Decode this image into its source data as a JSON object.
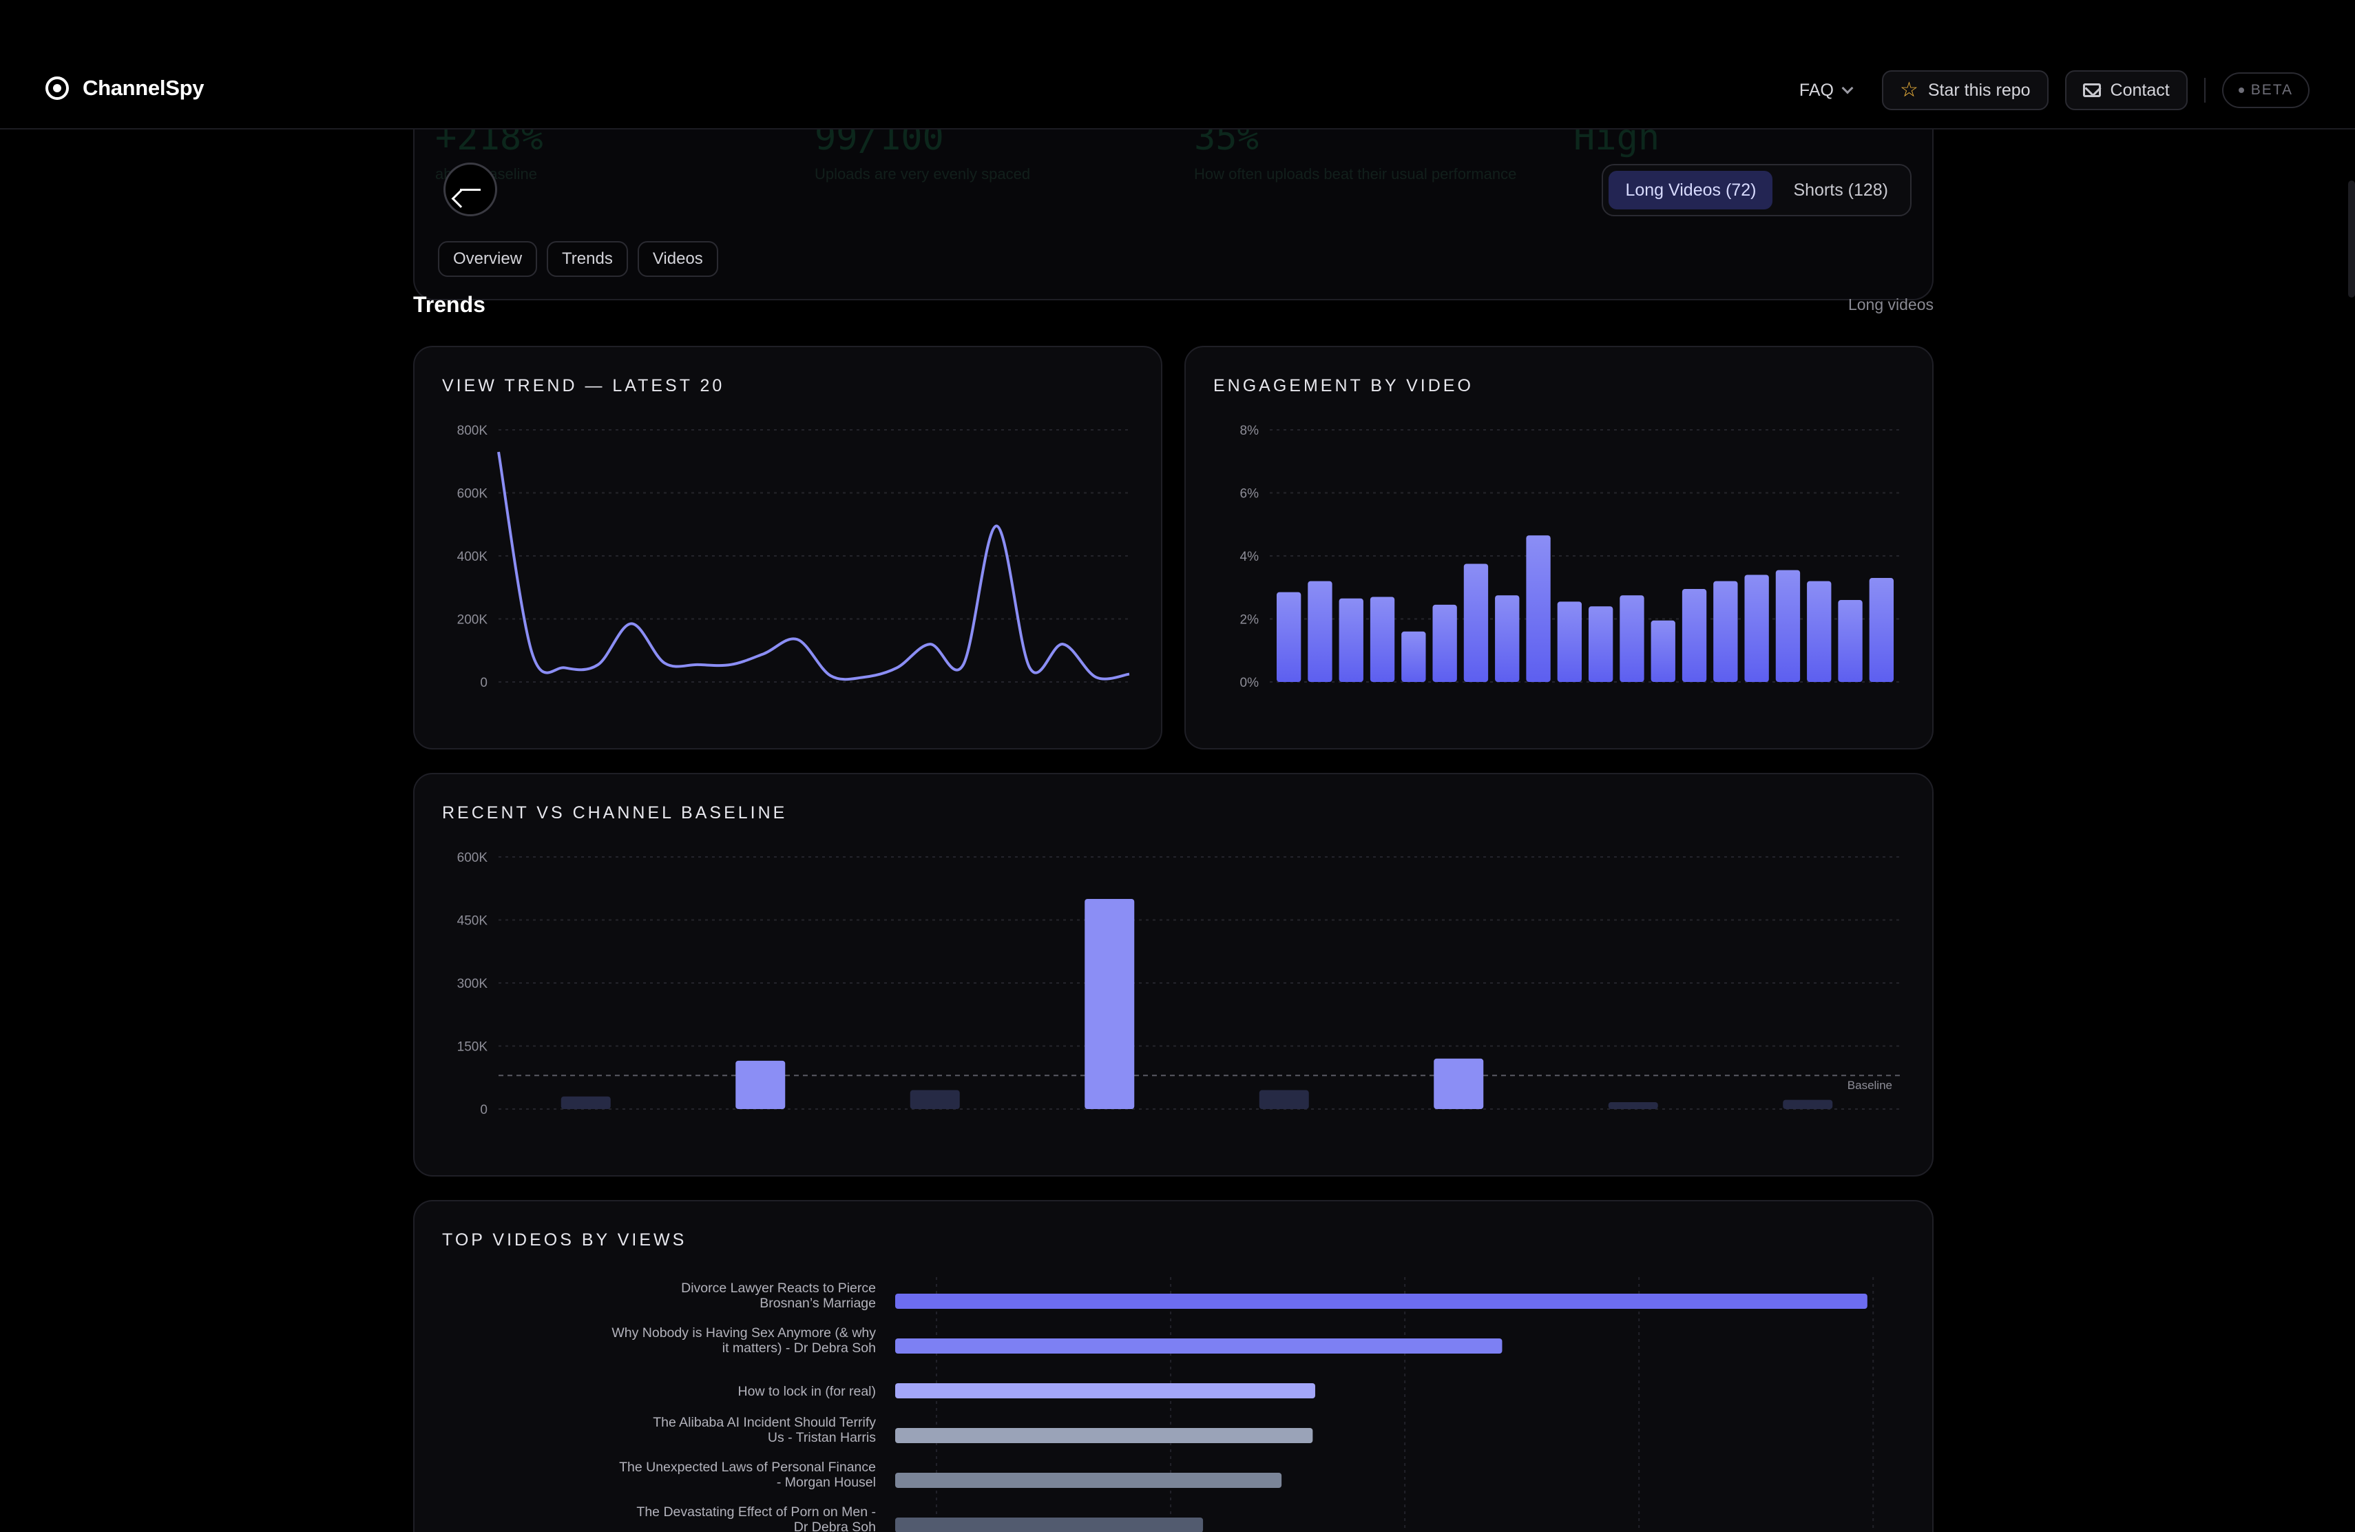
{
  "nav": {
    "brand": "ChannelSpy",
    "faq": "FAQ",
    "star": "Star this repo",
    "contact": "Contact",
    "beta": "BETA"
  },
  "hero": {
    "ghost_stats": [
      {
        "value": "+218%",
        "label": "above baseline"
      },
      {
        "value": "99/100",
        "label": "Uploads are very evenly spaced"
      },
      {
        "value": "35%",
        "label": "How often uploads beat their usual performance"
      },
      {
        "value": "High",
        "label": ""
      }
    ],
    "modes": [
      "Long Videos (72)",
      "Shorts (128)"
    ],
    "active_mode": "Long Videos (72)",
    "tabs": [
      "Overview",
      "Trends",
      "Videos"
    ]
  },
  "section": {
    "title": "Trends",
    "subtitle": "Long videos"
  },
  "colors": {
    "accent": "#6d6df0",
    "accent_light": "#8b8ef5",
    "muted_bar": "#262a45",
    "bg": "#000000",
    "card": "#0b0b0e"
  },
  "chart_data": [
    {
      "type": "line",
      "title": "VIEW TREND — LATEST 20",
      "yticks": [
        "800K",
        "600K",
        "400K",
        "200K",
        "0"
      ],
      "ylim": [
        0,
        800000
      ],
      "values": [
        730000,
        95000,
        45000,
        55000,
        185000,
        60000,
        55000,
        55000,
        90000,
        135000,
        20000,
        15000,
        45000,
        120000,
        55000,
        495000,
        45000,
        120000,
        15000,
        25000
      ]
    },
    {
      "type": "bar",
      "title": "ENGAGEMENT BY VIDEO",
      "yticks": [
        "8%",
        "6%",
        "4%",
        "2%",
        "0%"
      ],
      "ylim": [
        0,
        8
      ],
      "values": [
        2.85,
        3.2,
        2.65,
        2.7,
        1.6,
        2.45,
        3.75,
        2.75,
        4.65,
        2.55,
        2.4,
        2.75,
        1.95,
        2.95,
        3.2,
        3.4,
        3.55,
        3.2,
        2.6,
        3.3
      ]
    },
    {
      "type": "bar",
      "title": "RECENT VS CHANNEL BASELINE",
      "yticks": [
        "600K",
        "450K",
        "300K",
        "150K",
        "0"
      ],
      "ylim": [
        0,
        600000
      ],
      "baseline": 80000,
      "baseline_label": "Baseline",
      "values": [
        30000,
        115000,
        45000,
        500000,
        45000,
        120000,
        15000,
        22000
      ]
    },
    {
      "type": "bar",
      "title": "TOP VIDEOS BY VIEWS",
      "orientation": "horizontal",
      "categories": [
        [
          "Divorce Lawyer Reacts to Pierce",
          "Brosnan’s Marriage"
        ],
        [
          "Why Nobody is Having Sex Anymore (& why",
          "it matters) - Dr Debra Soh"
        ],
        [
          "How to lock in (for real)"
        ],
        [
          "The Alibaba AI Incident Should Terrify",
          "Us - Tristan Harris"
        ],
        [
          "The Unexpected Laws of Personal Finance",
          "- Morgan Housel"
        ],
        [
          "The Devastating Effect of Porn on Men -",
          "Dr Debra Soh"
        ]
      ],
      "values": [
        780000,
        487000,
        337000,
        335000,
        310000,
        247000
      ],
      "xlim": [
        0,
        800000
      ]
    }
  ]
}
